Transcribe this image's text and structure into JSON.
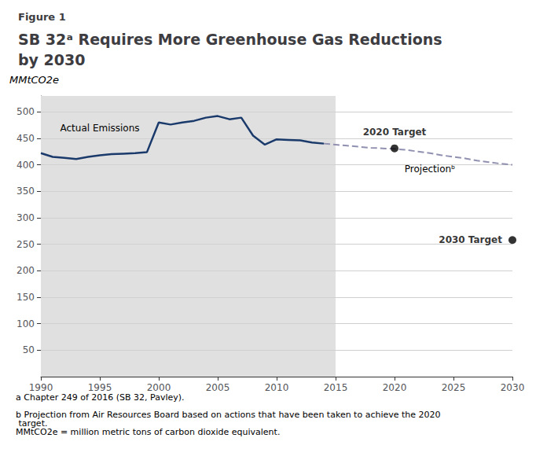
{
  "chart_data": {
    "type": "line",
    "figure_label": "Figure 1",
    "title": "SB 32ᵃ Requires More Greenhouse Gas Reductions by 2030",
    "ylabel": "MMtCO2e",
    "xlim": [
      1990,
      2030
    ],
    "xticks": [
      1990,
      1995,
      2000,
      2005,
      2010,
      2015,
      2020,
      2025,
      2030
    ],
    "ylim": [
      0,
      530
    ],
    "yticks": [
      50,
      100,
      150,
      200,
      250,
      300,
      350,
      400,
      450,
      500
    ],
    "grid": true,
    "shade": {
      "x": [
        1990,
        2015
      ],
      "color": "#e0e0e0"
    },
    "series": [
      {
        "type": "line",
        "color": "#1a3a6b",
        "line_style": "solid",
        "annotation": "Actual Emissions",
        "x": [
          1990,
          1991,
          1992,
          1993,
          1994,
          1995,
          1996,
          1997,
          1998,
          1999,
          2000,
          2001,
          2002,
          2003,
          2004,
          2005,
          2006,
          2007,
          2008,
          2009,
          2010,
          2011,
          2012,
          2013,
          2014
        ],
        "values": [
          422,
          415,
          413,
          411,
          415,
          418,
          420,
          421,
          422,
          424,
          480,
          476,
          480,
          483,
          489,
          492,
          486,
          489,
          455,
          438,
          448,
          447,
          446,
          442,
          440
        ]
      },
      {
        "type": "line",
        "color": "#9090b0",
        "line_style": "dashed",
        "annotation": "Projectionᵇ",
        "x": [
          2014,
          2015,
          2016,
          2017,
          2018,
          2019,
          2020,
          2021,
          2022,
          2023,
          2024,
          2025,
          2026,
          2027,
          2028,
          2029,
          2030
        ],
        "values": [
          440,
          438,
          436,
          434,
          432,
          431,
          430,
          428,
          425,
          422,
          418,
          415,
          412,
          408,
          405,
          402,
          400
        ]
      },
      {
        "type": "scatter",
        "color": "#000000",
        "marker": "circle",
        "annotation": "2020 Target",
        "x": [
          2020
        ],
        "values": [
          431
        ]
      },
      {
        "type": "scatter",
        "color": "#000000",
        "marker": "circle",
        "annotation": "2030 Target",
        "x": [
          2030
        ],
        "values": [
          258
        ]
      }
    ],
    "footnotes": [
      "a Chapter 249 of 2016 (SB 32, Pavley).",
      "b Projection from Air Resources Board based on actions that have been taken to achieve the 2020 target.",
      "MMtCO2e = million metric tons of carbon dioxide equivalent."
    ]
  }
}
